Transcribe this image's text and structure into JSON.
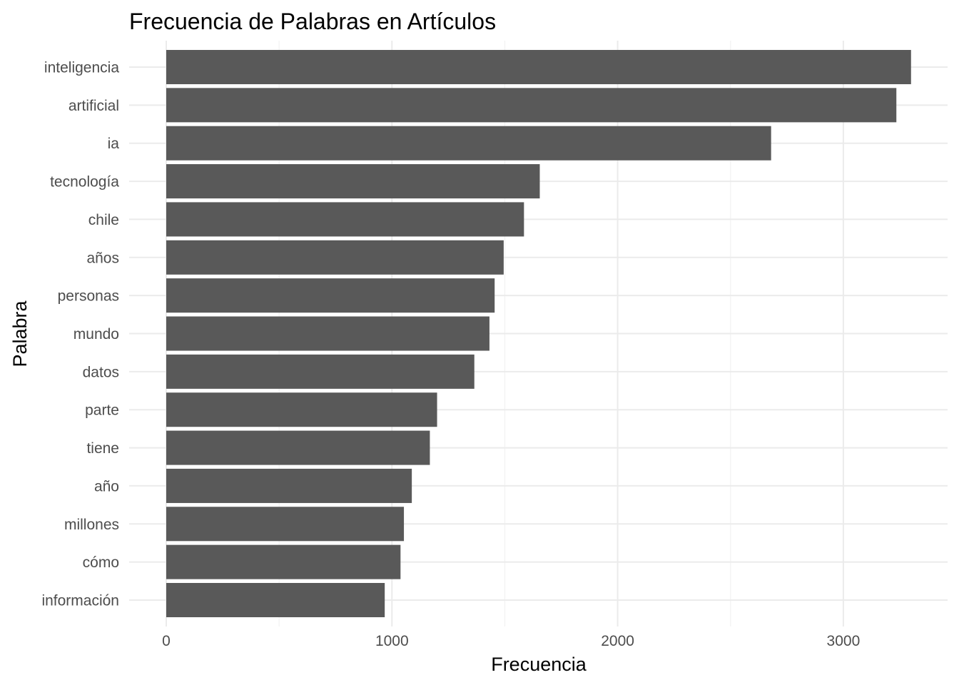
{
  "chart_data": {
    "type": "bar",
    "orientation": "horizontal",
    "title": "Frecuencia de Palabras en Artículos",
    "xlabel": "Frecuencia",
    "ylabel": "Palabra",
    "categories": [
      "inteligencia",
      "artificial",
      "ia",
      "tecnología",
      "chile",
      "años",
      "personas",
      "mundo",
      "datos",
      "parte",
      "tiene",
      "año",
      "millones",
      "cómo",
      "información"
    ],
    "values": [
      3300,
      3235,
      2680,
      1655,
      1585,
      1495,
      1455,
      1432,
      1365,
      1200,
      1168,
      1088,
      1053,
      1038,
      968
    ],
    "xlim": [
      0,
      3300
    ],
    "x_ticks": [
      0,
      1000,
      2000,
      3000
    ],
    "x_tick_labels": [
      "0",
      "1000",
      "2000",
      "3000"
    ],
    "bar_color": "#595959",
    "grid": true,
    "legend": "none"
  }
}
